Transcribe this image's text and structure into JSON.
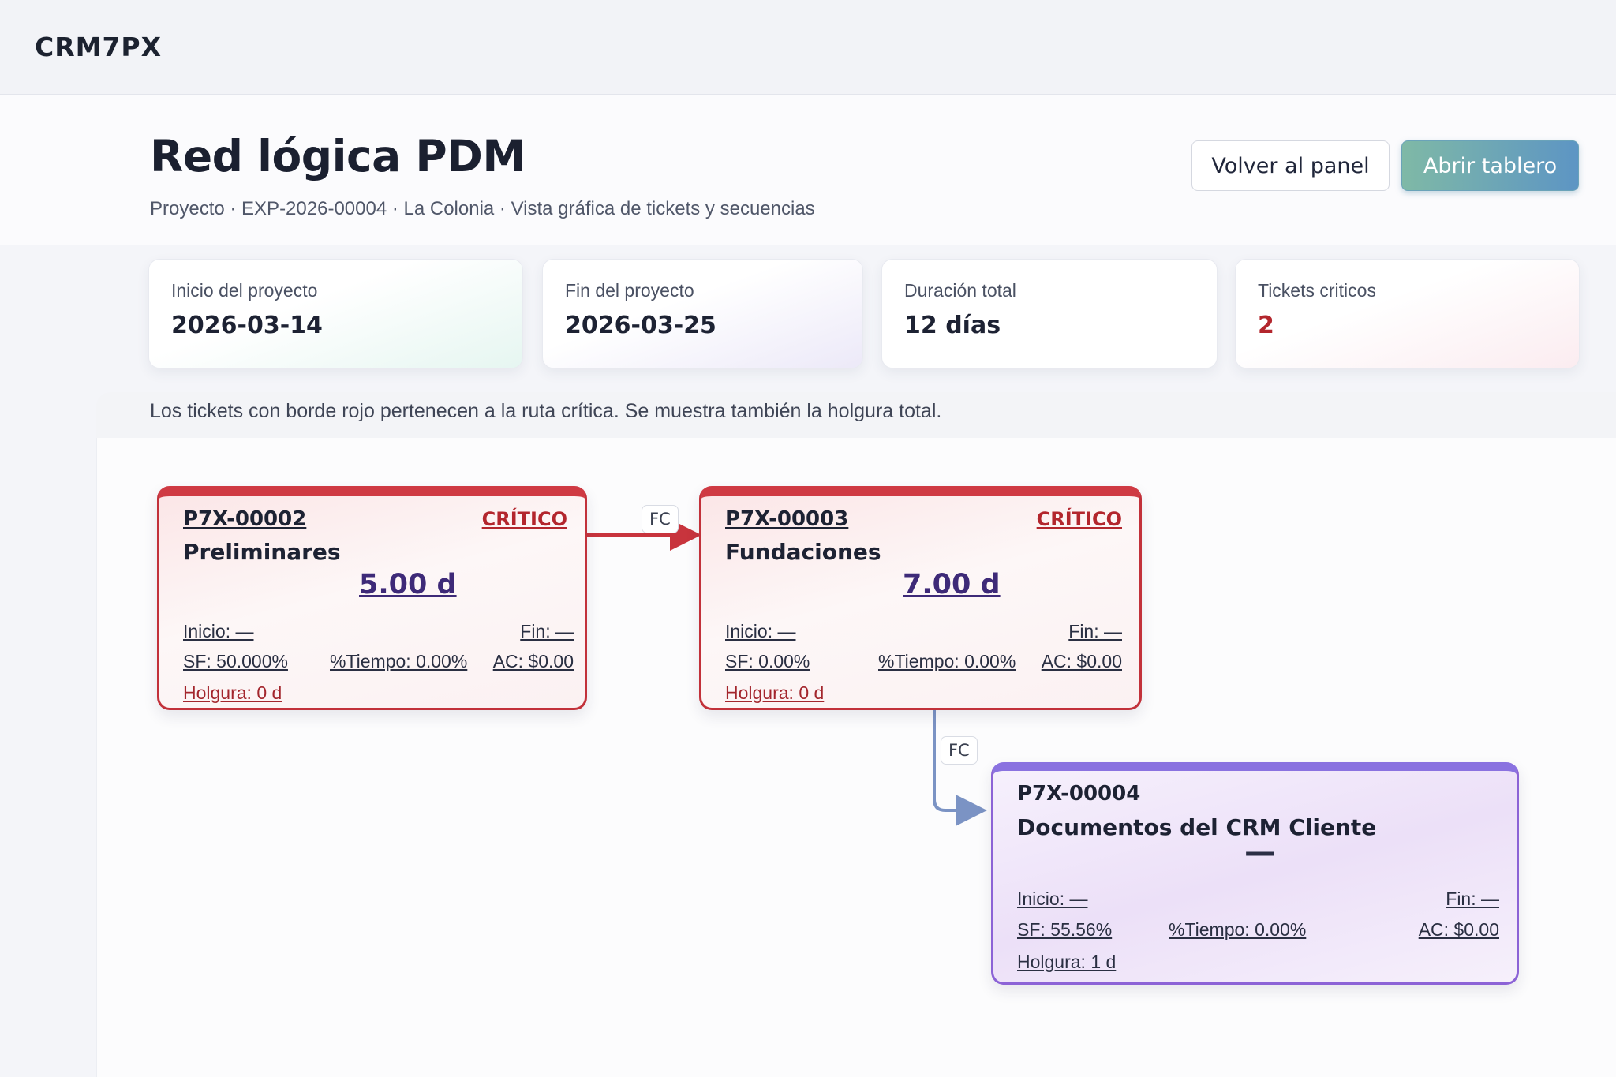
{
  "app": {
    "brand": "CRM7PX"
  },
  "header": {
    "title": "Red lógica PDM",
    "subtitle": "Proyecto · EXP-2026-00004 · La Colonia · Vista gráfica de tickets y secuencias",
    "back_button": "Volver al panel",
    "open_button": "Abrir tablero"
  },
  "stats": [
    {
      "label": "Inicio del proyecto",
      "value": "2026-03-14"
    },
    {
      "label": "Fin del proyecto",
      "value": "2026-03-25"
    },
    {
      "label": "Duración total",
      "value": "12 días"
    },
    {
      "label": "Tickets criticos",
      "value": "2"
    }
  ],
  "note": "Los tickets con borde rojo pertenecen a la ruta crítica. Se muestra también la holgura total.",
  "nodes": [
    {
      "code": "P7X-00002",
      "badge": "CRÍTICO",
      "name": "Preliminares",
      "duration": "5.00 d",
      "inicio": "Inicio: —",
      "fin": "Fin: —",
      "sf": "SF: 50.000%",
      "tiempo": "%Tiempo: 0.00%",
      "ac": "AC: $0.00",
      "holgura": "Holgura: 0 d",
      "critical": true
    },
    {
      "code": "P7X-00003",
      "badge": "CRÍTICO",
      "name": "Fundaciones",
      "duration": "7.00 d",
      "inicio": "Inicio: —",
      "fin": "Fin: —",
      "sf": "SF: 0.00%",
      "tiempo": "%Tiempo: 0.00%",
      "ac": "AC: $0.00",
      "holgura": "Holgura: 0 d",
      "critical": true
    },
    {
      "code": "P7X-00004",
      "badge": "",
      "name": "Documentos del CRM Cliente",
      "duration": "—",
      "inicio": "Inicio: —",
      "fin": "Fin: —",
      "sf": "SF: 55.56%",
      "tiempo": "%Tiempo: 0.00%",
      "ac": "AC: $0.00",
      "holgura": "Holgura: 1 d",
      "critical": false
    }
  ],
  "links": [
    {
      "from": "P7X-00002",
      "to": "P7X-00003",
      "type": "FC",
      "critical": true
    },
    {
      "from": "P7X-00003",
      "to": "P7X-00004",
      "type": "FC",
      "critical": false
    }
  ],
  "colors": {
    "critical": "#c2313a",
    "normal_border": "#8c63d6",
    "link_normal": "#7b93c4",
    "accent_button": "#5d95c4"
  }
}
